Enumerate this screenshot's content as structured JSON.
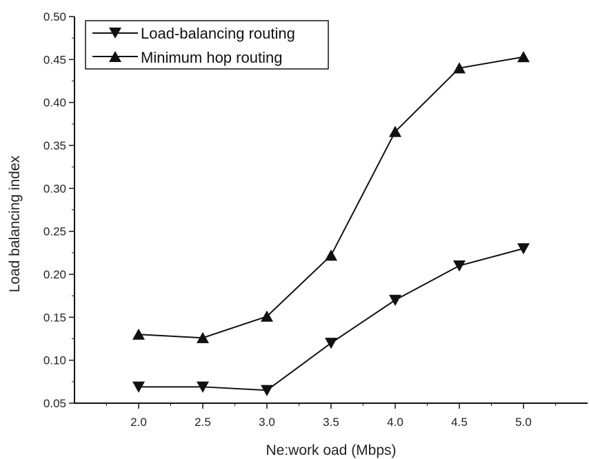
{
  "chart_data": {
    "type": "line",
    "xlabel": "Ne:work oad (Mbps)",
    "ylabel": "Load balancing index",
    "xlim": [
      1.5,
      5.5
    ],
    "ylim": [
      0.05,
      0.5
    ],
    "x_ticks": [
      "2.0",
      "2.5",
      "3.0",
      "3.5",
      "4.0",
      "4.5",
      "5.0"
    ],
    "y_ticks": [
      "0.05",
      "0.10",
      "0.15",
      "0.20",
      "0.25",
      "0.30",
      "0.35",
      "0.40",
      "0.45",
      "0.50"
    ],
    "grid": false,
    "legend_position": "top-left",
    "x": [
      2.0,
      2.5,
      3.0,
      3.5,
      4.0,
      4.5,
      5.0
    ],
    "series": [
      {
        "name": "Load-balancing routing",
        "marker": "triangle-down",
        "values": [
          0.069,
          0.069,
          0.065,
          0.12,
          0.17,
          0.21,
          0.23
        ]
      },
      {
        "name": "Minimum hop routing",
        "marker": "triangle-up",
        "values": [
          0.13,
          0.126,
          0.151,
          0.222,
          0.366,
          0.44,
          0.453
        ]
      }
    ],
    "line_color": "#111111"
  }
}
